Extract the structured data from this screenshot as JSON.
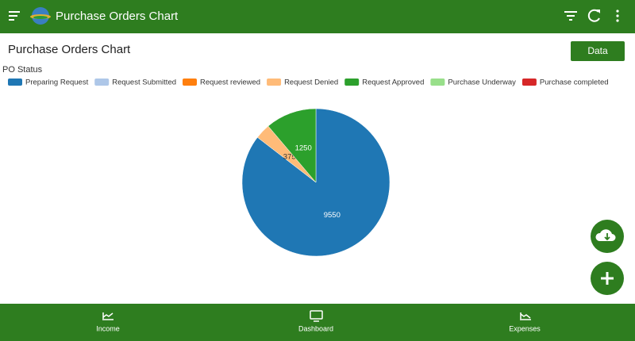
{
  "app_bar": {
    "title": "Purchase Orders Chart"
  },
  "page": {
    "title": "Purchase Orders Chart",
    "button": "Data"
  },
  "chart_data": {
    "type": "pie",
    "legend_title": "PO Status",
    "categories": [
      "Preparing Request",
      "Request Submitted",
      "Request reviewed",
      "Request Denied",
      "Request Approved",
      "Purchase Underway",
      "Purchase completed"
    ],
    "values": [
      9550,
      0,
      0,
      375,
      1250,
      0,
      0
    ],
    "colors": [
      "#1f77b4",
      "#aec7e8",
      "#ff7f0e",
      "#ffbb78",
      "#2ca02c",
      "#98df8a",
      "#d62728"
    ]
  },
  "bottom_nav": {
    "items": [
      {
        "label": "Income"
      },
      {
        "label": "Dashboard"
      },
      {
        "label": "Expenses"
      }
    ]
  }
}
